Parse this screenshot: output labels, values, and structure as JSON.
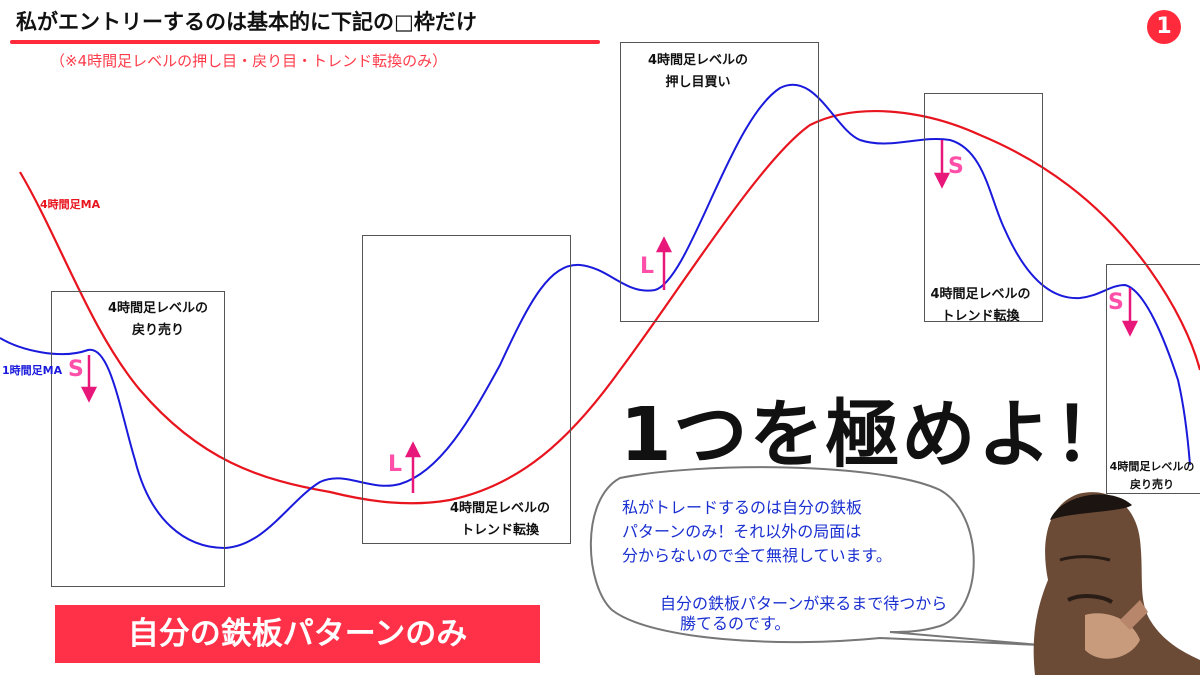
{
  "header": {
    "title": "私がエントリーするのは基本的に下記の□枠だけ",
    "subtitle": "（※4時間足レベルの押し目・戻り目・トレンド転換のみ）",
    "slide_number": "1"
  },
  "chart": {
    "ma4h_label": "4時間足MA",
    "ma1h_label": "1時間足MA",
    "ma4h_color": "#e8141e",
    "ma1h_color": "#1a1adc",
    "marker_color": "#ff4fa8"
  },
  "zones": [
    {
      "line1": "4時間足レベルの",
      "line2": "戻り売り"
    },
    {
      "line1": "4時間足レベルの",
      "line2": "トレンド転換"
    },
    {
      "line1": "4時間足レベルの",
      "line2": "押し目買い"
    },
    {
      "line1": "4時間足レベルの",
      "line2": "トレンド転換"
    },
    {
      "line1": "4時間足レベルの",
      "line2": "戻り売り"
    }
  ],
  "markers": [
    "S",
    "L",
    "L",
    "S",
    "S"
  ],
  "slogan": "1つを極めよ！",
  "banner": "自分の鉄板パターンのみ",
  "speech": {
    "line1": "私がトレードするのは自分の鉄板",
    "line2": "パターンのみ！それ以外の局面は",
    "line3": "分からないので全て無視しています。",
    "line4": "自分の鉄板パターンが来るまで待つから",
    "line5": "勝てるのです。"
  }
}
